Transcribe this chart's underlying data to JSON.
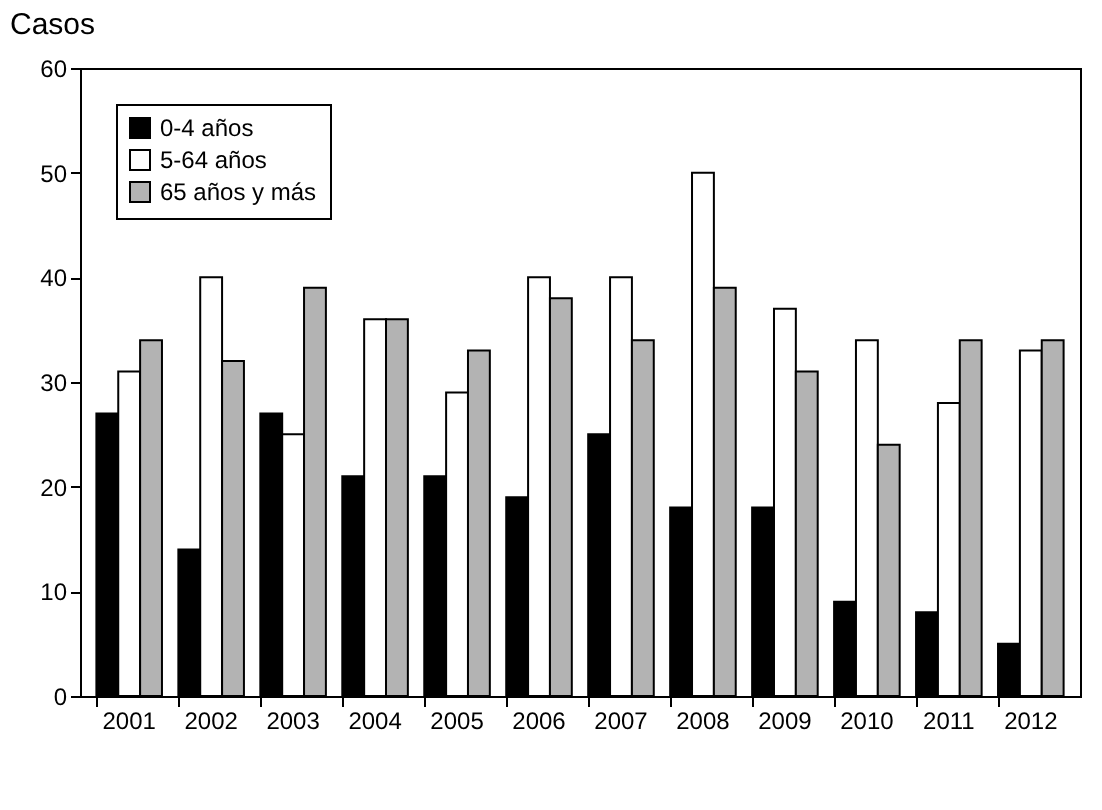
{
  "chart_data": {
    "type": "bar",
    "ylabel": "Casos",
    "categories": [
      "2001",
      "2002",
      "2003",
      "2004",
      "2005",
      "2006",
      "2007",
      "2008",
      "2009",
      "2010",
      "2011",
      "2012"
    ],
    "series": [
      {
        "name": "0-4 años",
        "color": "#000000",
        "values": [
          27,
          14,
          27,
          21,
          21,
          19,
          25,
          18,
          18,
          9,
          8,
          5
        ]
      },
      {
        "name": "5-64 años",
        "color": "#ffffff",
        "values": [
          31,
          40,
          25,
          36,
          29,
          40,
          40,
          50,
          37,
          34,
          28,
          33
        ]
      },
      {
        "name": "65 años y más",
        "color": "#b3b3b3",
        "values": [
          34,
          32,
          39,
          36,
          33,
          38,
          34,
          39,
          31,
          24,
          34,
          34
        ]
      }
    ],
    "ylim": [
      0,
      60
    ],
    "yticks": [
      0,
      10,
      20,
      30,
      40,
      50,
      60
    ],
    "grid": false,
    "legend": "top left"
  }
}
